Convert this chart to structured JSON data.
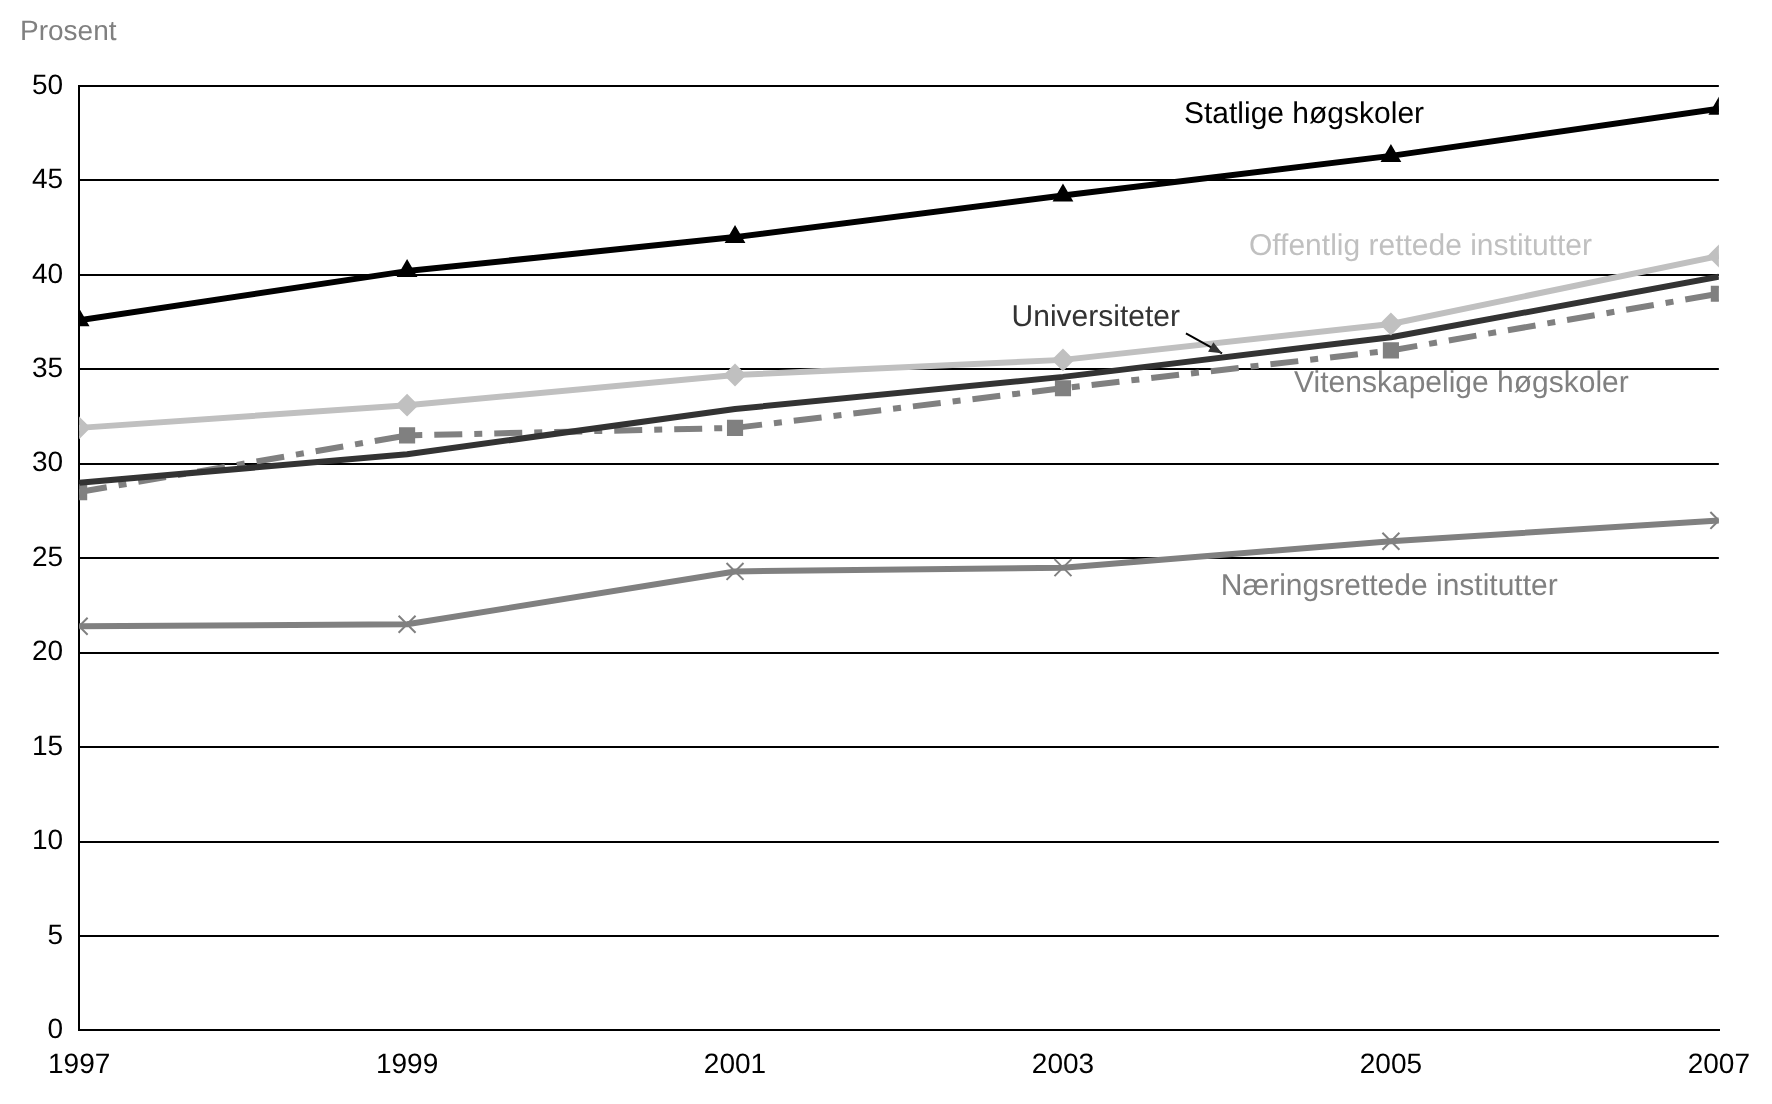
{
  "chart_data": {
    "type": "line",
    "ylabel": "Prosent",
    "x": [
      1997,
      1999,
      2001,
      2003,
      2005,
      2007
    ],
    "xlim": [
      1997,
      2007
    ],
    "xticks": [
      1997,
      1999,
      2001,
      2003,
      2005,
      2007
    ],
    "ylim": [
      0,
      50
    ],
    "yticks": [
      0,
      5,
      10,
      15,
      20,
      25,
      30,
      35,
      40,
      45,
      50
    ],
    "grid": "y",
    "legend": false,
    "series": [
      {
        "name": "Statlige høgskoler",
        "color": "#000000",
        "marker": "triangle",
        "line_style": "solid",
        "values": [
          37.6,
          40.2,
          42.0,
          44.2,
          46.3,
          48.8
        ]
      },
      {
        "name": "Offentlig rettede institutter",
        "color": "#c0c0c0",
        "marker": "diamond",
        "line_style": "solid",
        "values": [
          31.9,
          33.1,
          34.7,
          35.5,
          37.4,
          41.0
        ]
      },
      {
        "name": "Universiteter",
        "color": "#333333",
        "marker": "none",
        "line_style": "solid",
        "values": [
          29.0,
          30.5,
          32.9,
          34.6,
          36.7,
          39.9
        ]
      },
      {
        "name": "Vitenskapelige høgskoler",
        "color": "#808080",
        "marker": "square",
        "line_style": "dashed",
        "values": [
          28.5,
          31.5,
          31.9,
          34.0,
          36.0,
          39.0
        ]
      },
      {
        "name": "Næringsrettede institutter",
        "color": "#808080",
        "marker": "cross",
        "line_style": "solid",
        "values": [
          21.4,
          21.5,
          24.3,
          24.5,
          25.9,
          27.0
        ]
      }
    ]
  }
}
